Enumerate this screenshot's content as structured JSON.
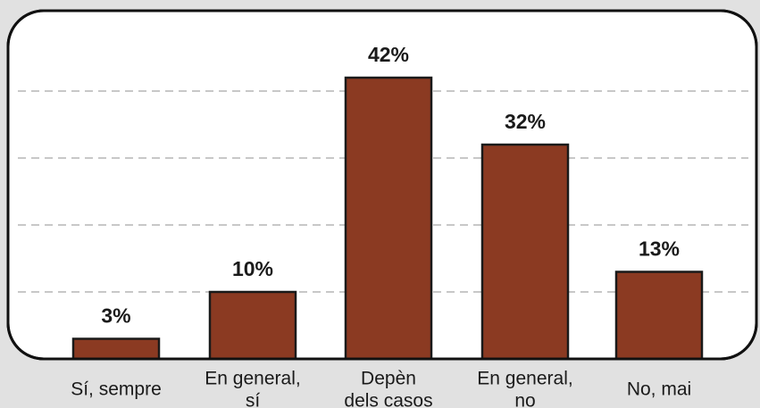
{
  "chart_data": {
    "type": "bar",
    "categories": [
      "Sí, sempre",
      "En general,\nsí",
      "Depèn\ndels casos",
      "En general,\nno",
      "No, mai"
    ],
    "values": [
      3,
      10,
      42,
      32,
      13
    ],
    "value_labels": [
      "3%",
      "10%",
      "42%",
      "32%",
      "13%"
    ],
    "color": "#8b3a22",
    "ylim": [
      0,
      52
    ],
    "yticks": [
      10,
      20,
      30,
      40
    ],
    "grid": true
  }
}
